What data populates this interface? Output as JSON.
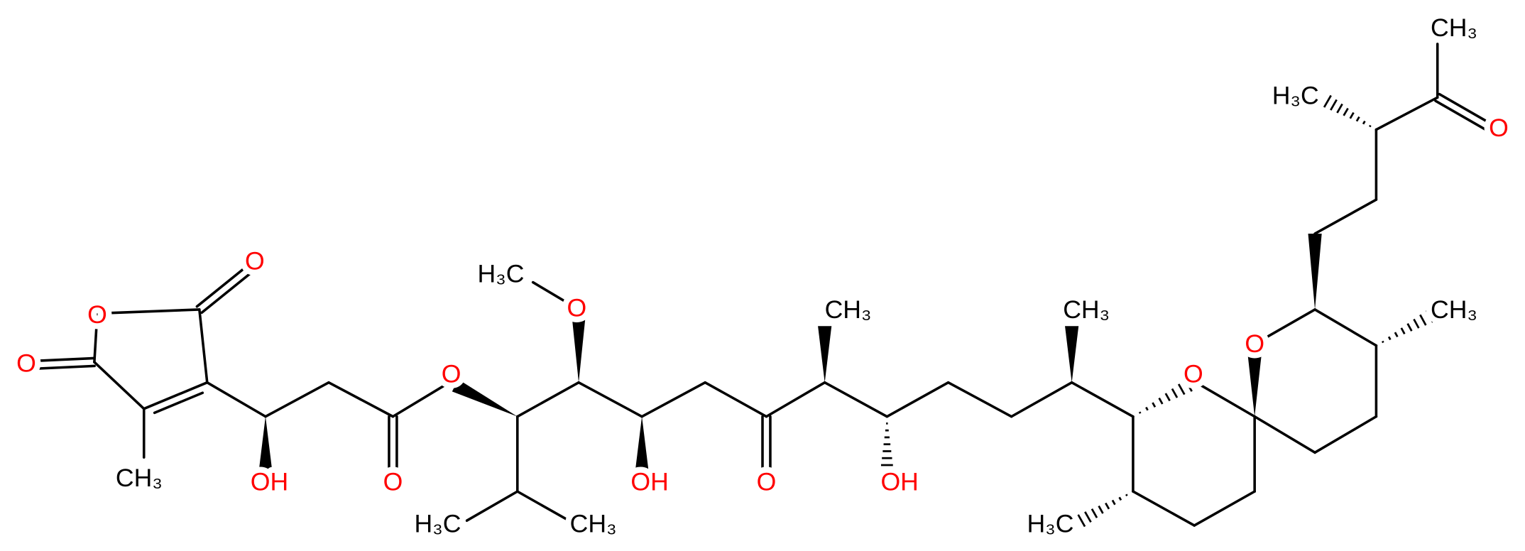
{
  "atoms": [
    {
      "label": "O"
    },
    {
      "label": "O"
    },
    {
      "label": "O"
    },
    {
      "label": "CH₃"
    },
    {
      "label": "OH"
    },
    {
      "label": "O"
    },
    {
      "label": "O"
    },
    {
      "label": "H₃C"
    },
    {
      "label": "O"
    },
    {
      "label": "H₃C"
    },
    {
      "label": "CH₃"
    },
    {
      "label": "OH"
    },
    {
      "label": "O"
    },
    {
      "label": "CH₃"
    },
    {
      "label": "OH"
    },
    {
      "label": "CH₃"
    },
    {
      "label": "O"
    },
    {
      "label": "H₃C"
    },
    {
      "label": "O"
    },
    {
      "label": "CH₃"
    },
    {
      "label": "H₃C"
    },
    {
      "label": "CH₃"
    },
    {
      "label": "O"
    }
  ]
}
